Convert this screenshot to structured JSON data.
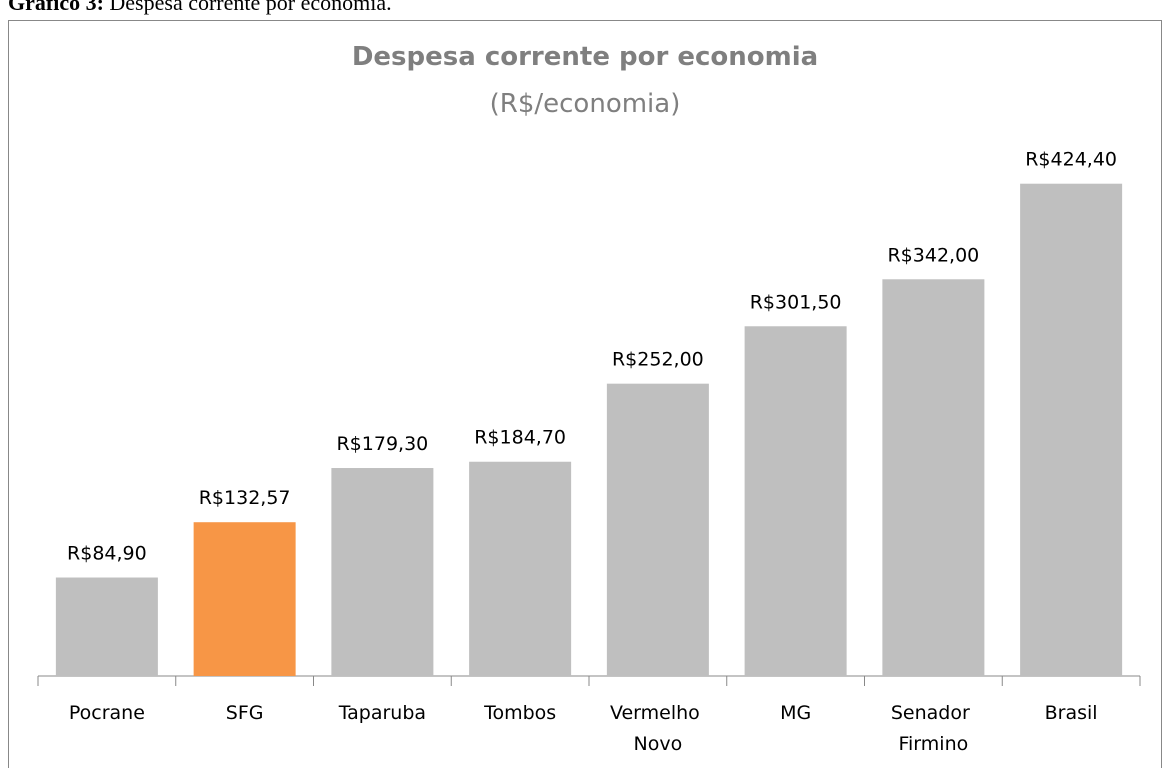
{
  "caption_label": "Gráfico 3:",
  "caption": "Despesa corrente por economia.",
  "chart_data": {
    "type": "bar",
    "title": "Despesa corrente por economia",
    "subtitle": "(R$/economia)",
    "categories": [
      "Pocrane",
      "SFG",
      "Taparuba",
      "Tombos",
      "Vermelho Novo",
      "MG",
      "Senador Firmino",
      "Brasil"
    ],
    "values": [
      84.9,
      132.57,
      179.3,
      184.7,
      252.0,
      301.5,
      342.0,
      424.4
    ],
    "value_labels": [
      "R$84,90",
      "R$132,57",
      "R$179,30",
      "R$184,70",
      "R$252,00",
      "R$301,50",
      "R$342,00",
      "R$424,40"
    ],
    "colors": [
      "#bfbfbf",
      "#f79646",
      "#bfbfbf",
      "#bfbfbf",
      "#bfbfbf",
      "#bfbfbf",
      "#bfbfbf",
      "#bfbfbf"
    ],
    "ylim": [
      0,
      450
    ]
  }
}
